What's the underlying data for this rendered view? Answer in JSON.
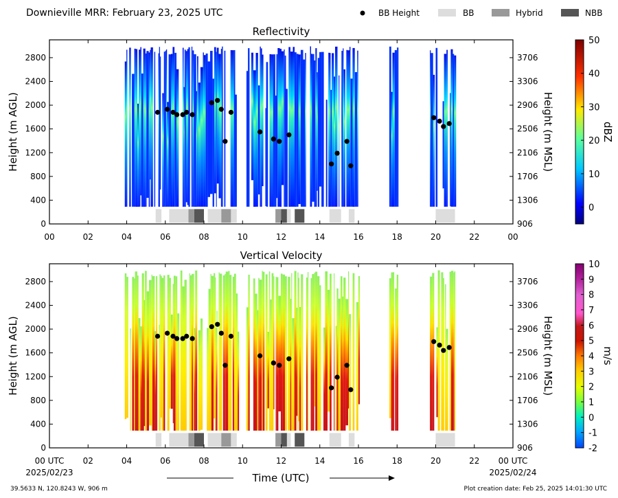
{
  "figure": {
    "title": "Downieville MRR:  February 23, 2025 UTC",
    "legend": [
      {
        "label": "BB Height",
        "kind": "dot",
        "color": "#000000"
      },
      {
        "label": "BB",
        "kind": "box",
        "color": "#dddddd"
      },
      {
        "label": "Hybrid",
        "kind": "box",
        "color": "#999999"
      },
      {
        "label": "NBB",
        "kind": "box",
        "color": "#555555"
      }
    ],
    "xlabel": "Time (UTC)",
    "x_start_label": [
      "00 UTC",
      "2025/02/23"
    ],
    "x_end_label": [
      "00 UTC",
      "2025/02/24"
    ],
    "location": "39.5633 N, 120.8243 W, 906 m",
    "creation_date": "Plot creation date: Feb 25, 2025 14:01:30 UTC"
  },
  "chart_data": [
    {
      "type": "heatmap",
      "title": "Reflectivity",
      "ylabel": "Height (m AGL)",
      "ylabel_right": "Height (m MSL)",
      "colorbar_label": "dBZ",
      "colorbar_ticks": [
        "0",
        "10",
        "20",
        "30",
        "40",
        "50"
      ],
      "colorbar_range": [
        -5,
        50
      ],
      "palette": "jet",
      "x_ticks": [
        "00",
        "02",
        "04",
        "06",
        "08",
        "10",
        "12",
        "14",
        "16",
        "18",
        "20",
        "22",
        "00"
      ],
      "xlim": [
        0,
        24
      ],
      "ylim": [
        0,
        3100
      ],
      "y_ticks": [
        0,
        400,
        800,
        1200,
        1600,
        2000,
        2400,
        2800
      ],
      "y_ticks_right": [
        "906",
        "1306",
        "1706",
        "2106",
        "2506",
        "2906",
        "3306",
        "3706"
      ],
      "precip_periods_utc": [
        [
          3.9,
          5.7
        ],
        [
          5.7,
          9.8
        ],
        [
          10.2,
          16.0
        ],
        [
          17.6,
          18.0
        ],
        [
          19.7,
          21.0
        ]
      ],
      "bb_height_m_agl": [
        [
          5.6,
          1880
        ],
        [
          6.1,
          1930
        ],
        [
          6.4,
          1880
        ],
        [
          6.6,
          1840
        ],
        [
          6.9,
          1840
        ],
        [
          7.1,
          1880
        ],
        [
          7.4,
          1840
        ],
        [
          8.4,
          2040
        ],
        [
          8.7,
          2080
        ],
        [
          8.9,
          1930
        ],
        [
          9.1,
          1390
        ],
        [
          9.4,
          1880
        ],
        [
          10.9,
          1550
        ],
        [
          11.6,
          1430
        ],
        [
          11.9,
          1390
        ],
        [
          12.4,
          1500
        ],
        [
          14.6,
          1010
        ],
        [
          14.9,
          1190
        ],
        [
          15.4,
          1390
        ],
        [
          15.6,
          980
        ],
        [
          19.9,
          1790
        ],
        [
          20.2,
          1730
        ],
        [
          20.4,
          1640
        ],
        [
          20.7,
          1690
        ]
      ],
      "bb_type_bars": [
        {
          "start": 5.5,
          "end": 5.8,
          "type": "BB"
        },
        {
          "start": 6.2,
          "end": 7.2,
          "type": "BB"
        },
        {
          "start": 7.2,
          "end": 7.5,
          "type": "Hybrid"
        },
        {
          "start": 7.5,
          "end": 8.0,
          "type": "NBB"
        },
        {
          "start": 8.2,
          "end": 8.9,
          "type": "BB"
        },
        {
          "start": 8.9,
          "end": 9.4,
          "type": "Hybrid"
        },
        {
          "start": 9.4,
          "end": 9.7,
          "type": "BB"
        },
        {
          "start": 11.7,
          "end": 12.0,
          "type": "Hybrid"
        },
        {
          "start": 12.0,
          "end": 12.3,
          "type": "NBB"
        },
        {
          "start": 12.3,
          "end": 12.5,
          "type": "BB"
        },
        {
          "start": 12.7,
          "end": 13.2,
          "type": "NBB"
        },
        {
          "start": 14.5,
          "end": 15.1,
          "type": "BB"
        },
        {
          "start": 15.5,
          "end": 15.8,
          "type": "BB"
        },
        {
          "start": 20.0,
          "end": 21.0,
          "type": "BB"
        }
      ]
    },
    {
      "type": "heatmap",
      "title": "Vertical Velocity",
      "ylabel": "Height (m AGL)",
      "ylabel_right": "Height (m MSL)",
      "colorbar_label": "m/s",
      "colorbar_ticks": [
        "-2",
        "-1",
        "0",
        "1",
        "2",
        "3",
        "4",
        "5",
        "6",
        "7",
        "8",
        "9",
        "10"
      ],
      "colorbar_range": [
        -2,
        10
      ],
      "palette": "velocity",
      "x_ticks": [
        "",
        "02",
        "04",
        "06",
        "08",
        "10",
        "12",
        "14",
        "16",
        "18",
        "20",
        "22",
        ""
      ],
      "xlim": [
        0,
        24
      ],
      "ylim": [
        0,
        3100
      ],
      "y_ticks": [
        0,
        400,
        800,
        1200,
        1600,
        2000,
        2400,
        2800
      ],
      "y_ticks_right": [
        "906",
        "1306",
        "1706",
        "2106",
        "2506",
        "2906",
        "3306",
        "3706"
      ],
      "precip_periods_utc": [
        [
          3.9,
          5.7
        ],
        [
          5.7,
          9.8
        ],
        [
          10.2,
          16.0
        ],
        [
          17.6,
          18.0
        ],
        [
          19.7,
          21.0
        ]
      ],
      "bb_height_m_agl": [
        [
          5.6,
          1880
        ],
        [
          6.1,
          1930
        ],
        [
          6.4,
          1880
        ],
        [
          6.6,
          1840
        ],
        [
          6.9,
          1840
        ],
        [
          7.1,
          1880
        ],
        [
          7.4,
          1840
        ],
        [
          8.4,
          2040
        ],
        [
          8.7,
          2080
        ],
        [
          8.9,
          1930
        ],
        [
          9.1,
          1390
        ],
        [
          9.4,
          1880
        ],
        [
          10.9,
          1550
        ],
        [
          11.6,
          1430
        ],
        [
          11.9,
          1390
        ],
        [
          12.4,
          1500
        ],
        [
          14.6,
          1010
        ],
        [
          14.9,
          1190
        ],
        [
          15.4,
          1390
        ],
        [
          15.6,
          980
        ],
        [
          19.9,
          1790
        ],
        [
          20.2,
          1730
        ],
        [
          20.4,
          1640
        ],
        [
          20.7,
          1690
        ]
      ],
      "bb_type_bars": [
        {
          "start": 5.5,
          "end": 5.8,
          "type": "BB"
        },
        {
          "start": 6.2,
          "end": 7.2,
          "type": "BB"
        },
        {
          "start": 7.2,
          "end": 7.5,
          "type": "Hybrid"
        },
        {
          "start": 7.5,
          "end": 8.0,
          "type": "NBB"
        },
        {
          "start": 8.2,
          "end": 8.9,
          "type": "BB"
        },
        {
          "start": 8.9,
          "end": 9.4,
          "type": "Hybrid"
        },
        {
          "start": 9.4,
          "end": 9.7,
          "type": "BB"
        },
        {
          "start": 11.7,
          "end": 12.0,
          "type": "Hybrid"
        },
        {
          "start": 12.0,
          "end": 12.3,
          "type": "NBB"
        },
        {
          "start": 12.3,
          "end": 12.5,
          "type": "BB"
        },
        {
          "start": 12.7,
          "end": 13.2,
          "type": "NBB"
        },
        {
          "start": 14.5,
          "end": 15.1,
          "type": "BB"
        },
        {
          "start": 15.5,
          "end": 15.8,
          "type": "BB"
        },
        {
          "start": 20.0,
          "end": 21.0,
          "type": "BB"
        }
      ]
    }
  ]
}
